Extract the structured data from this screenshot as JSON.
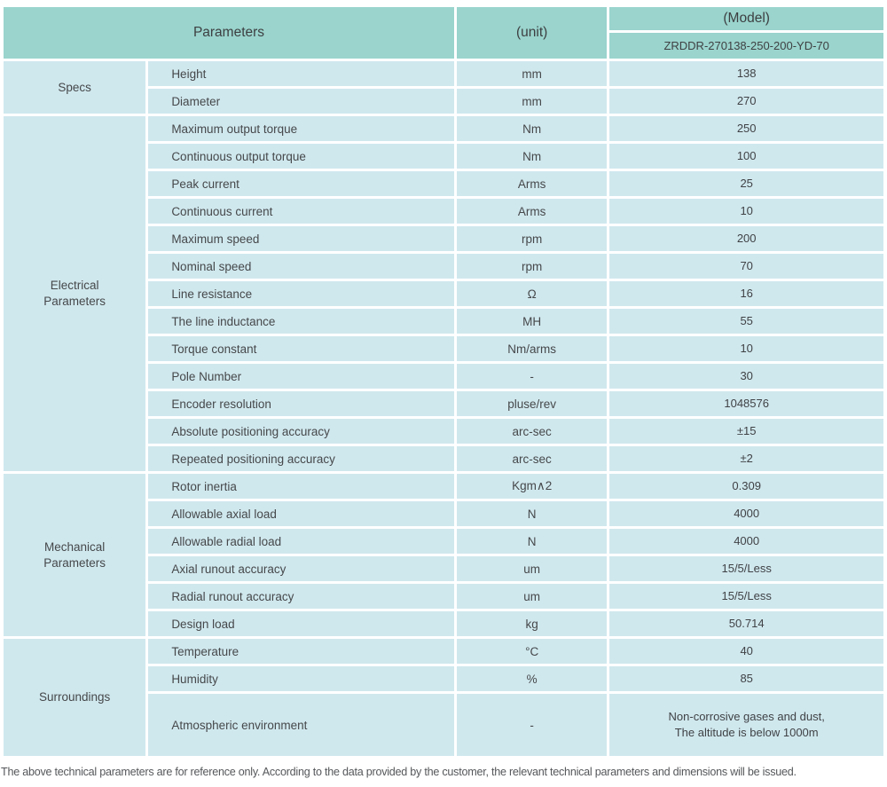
{
  "header": {
    "parameters_label": "Parameters",
    "unit_label": "(unit)",
    "model_label": "(Model)",
    "model_value": "ZRDDR-270138-250-200-YD-70"
  },
  "colors": {
    "header_bg": "#9ad4cd",
    "row_bg": "#cfe8ee",
    "separator": "#ffffff",
    "text": "#46484a"
  },
  "sections": [
    {
      "group": "Specs",
      "rows": [
        {
          "param": "Height",
          "unit": "mm",
          "value": "138"
        },
        {
          "param": "Diameter",
          "unit": "mm",
          "value": "270"
        }
      ]
    },
    {
      "group": "Electrical Parameters",
      "rows": [
        {
          "param": "Maximum output torque",
          "unit": "Nm",
          "value": "250"
        },
        {
          "param": "Continuous output torque",
          "unit": "Nm",
          "value": "100"
        },
        {
          "param": "Peak current",
          "unit": "Arms",
          "value": "25"
        },
        {
          "param": "Continuous current",
          "unit": "Arms",
          "value": "10"
        },
        {
          "param": "Maximum speed",
          "unit": "rpm",
          "value": "200"
        },
        {
          "param": "Nominal speed",
          "unit": "rpm",
          "value": "70"
        },
        {
          "param": "Line resistance",
          "unit": "Ω",
          "value": "16"
        },
        {
          "param": "The line inductance",
          "unit": "MH",
          "value": "55"
        },
        {
          "param": "Torque constant",
          "unit": "Nm/arms",
          "value": "10"
        },
        {
          "param": "Pole Number",
          "unit": "-",
          "value": "30"
        },
        {
          "param": "Encoder resolution",
          "unit": "pluse/rev",
          "value": "1048576"
        },
        {
          "param": "Absolute positioning accuracy",
          "unit": "arc-sec",
          "value": "±15"
        },
        {
          "param": "Repeated positioning accuracy",
          "unit": "arc-sec",
          "value": "±2"
        }
      ]
    },
    {
      "group": "Mechanical Parameters",
      "rows": [
        {
          "param": "Rotor inertia",
          "unit": "Kgm∧2",
          "value": "0.309"
        },
        {
          "param": "Allowable axial load",
          "unit": "N",
          "value": "4000"
        },
        {
          "param": "Allowable radial load",
          "unit": "N",
          "value": "4000"
        },
        {
          "param": "Axial runout accuracy",
          "unit": "um",
          "value": "15/5/Less"
        },
        {
          "param": "Radial runout accuracy",
          "unit": "um",
          "value": "15/5/Less"
        },
        {
          "param": "Design load",
          "unit": "kg",
          "value": "50.714"
        }
      ]
    },
    {
      "group": "Surroundings",
      "rows": [
        {
          "param": "Temperature",
          "unit": "°C",
          "value": "40"
        },
        {
          "param": "Humidity",
          "unit": "%",
          "value": "85"
        },
        {
          "param": "Atmospheric environment",
          "unit": "-",
          "value": "Non-corrosive gases and dust,\nThe altitude is below 1000m"
        }
      ]
    }
  ],
  "footnote": "The above technical parameters are for reference only. According to the data provided by the customer, the relevant technical parameters and dimensions will be issued."
}
